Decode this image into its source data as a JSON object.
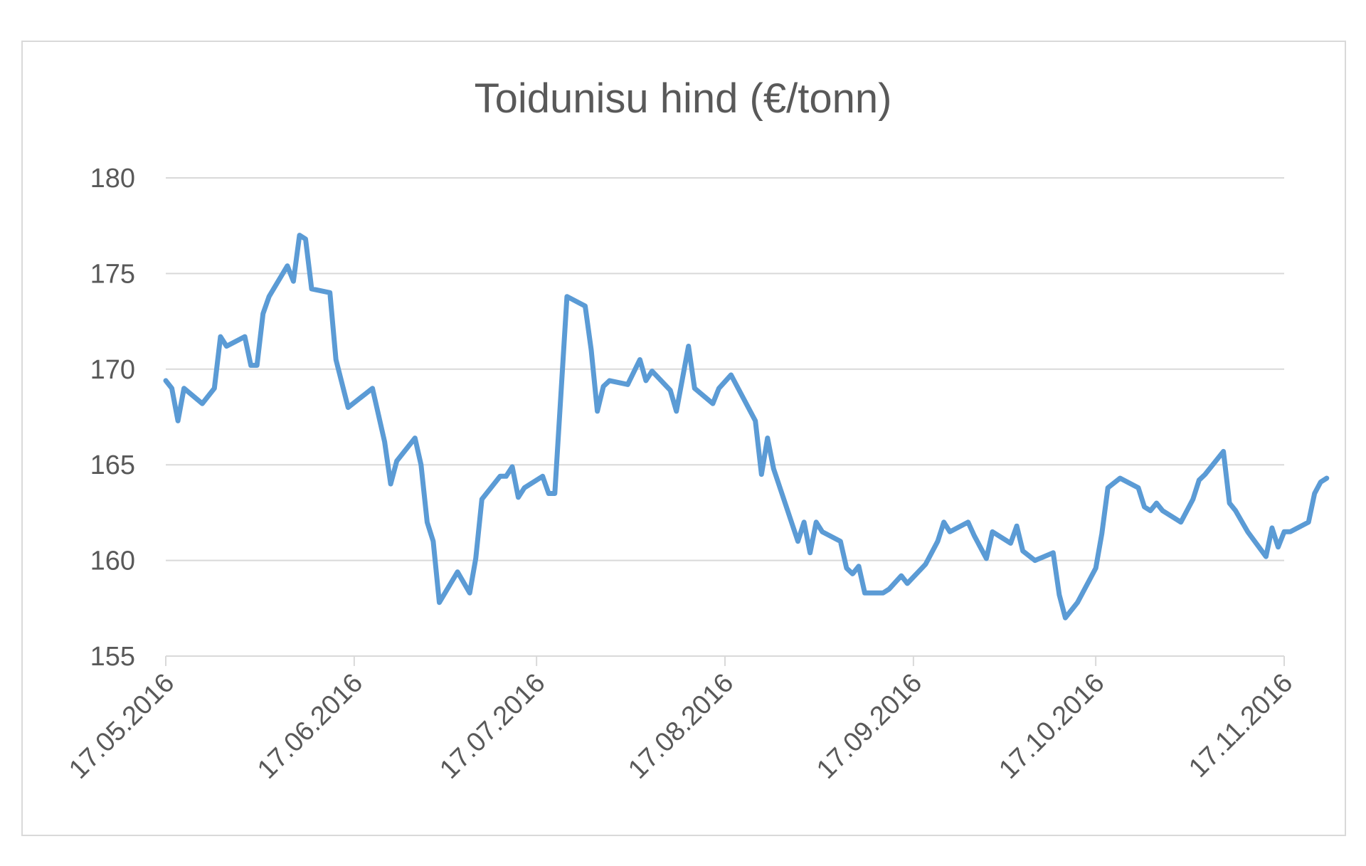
{
  "chart_data": {
    "type": "line",
    "title": "Toidunisu hind (€/tonn)",
    "xlabel": "",
    "ylabel": "",
    "ylim": [
      155,
      180
    ],
    "yticks": [
      "155",
      "160",
      "165",
      "170",
      "175",
      "180"
    ],
    "xticks": [
      "17.05.2016",
      "17.06.2016",
      "17.07.2016",
      "17.08.2016",
      "17.09.2016",
      "17.10.2016",
      "17.11.2016"
    ],
    "grid": "horizontal",
    "legend": "none",
    "series": [
      {
        "color": "#5b9bd5",
        "points": [
          [
            "17.05.2016",
            169.4
          ],
          [
            "18.05.2016",
            169.0
          ],
          [
            "19.05.2016",
            167.3
          ],
          [
            "20.05.2016",
            169.0
          ],
          [
            "23.05.2016",
            168.2
          ],
          [
            "25.05.2016",
            169.0
          ],
          [
            "26.05.2016",
            171.7
          ],
          [
            "27.05.2016",
            171.2
          ],
          [
            "30.05.2016",
            171.7
          ],
          [
            "31.05.2016",
            170.2
          ],
          [
            "01.06.2016",
            170.2
          ],
          [
            "02.06.2016",
            172.9
          ],
          [
            "03.06.2016",
            173.8
          ],
          [
            "06.06.2016",
            175.4
          ],
          [
            "07.06.2016",
            174.6
          ],
          [
            "08.06.2016",
            177.0
          ],
          [
            "09.06.2016",
            176.8
          ],
          [
            "10.06.2016",
            174.2
          ],
          [
            "13.06.2016",
            174.0
          ],
          [
            "14.06.2016",
            170.5
          ],
          [
            "16.06.2016",
            168.0
          ],
          [
            "20.06.2016",
            169.0
          ],
          [
            "22.06.2016",
            166.2
          ],
          [
            "23.06.2016",
            164.0
          ],
          [
            "24.06.2016",
            165.2
          ],
          [
            "27.06.2016",
            166.4
          ],
          [
            "28.06.2016",
            165.0
          ],
          [
            "29.06.2016",
            162.0
          ],
          [
            "30.06.2016",
            161.0
          ],
          [
            "01.07.2016",
            157.8
          ],
          [
            "04.07.2016",
            159.4
          ],
          [
            "06.07.2016",
            158.3
          ],
          [
            "07.07.2016",
            160.1
          ],
          [
            "08.07.2016",
            163.2
          ],
          [
            "11.07.2016",
            164.4
          ],
          [
            "12.07.2016",
            164.4
          ],
          [
            "13.07.2016",
            164.9
          ],
          [
            "14.07.2016",
            163.3
          ],
          [
            "15.07.2016",
            163.8
          ],
          [
            "18.07.2016",
            164.4
          ],
          [
            "19.07.2016",
            163.5
          ],
          [
            "20.07.2016",
            163.5
          ],
          [
            "22.07.2016",
            173.8
          ],
          [
            "25.07.2016",
            173.3
          ],
          [
            "26.07.2016",
            171.0
          ],
          [
            "27.07.2016",
            167.8
          ],
          [
            "28.07.2016",
            169.1
          ],
          [
            "29.07.2016",
            169.4
          ],
          [
            "01.08.2016",
            169.2
          ],
          [
            "03.08.2016",
            170.5
          ],
          [
            "04.08.2016",
            169.4
          ],
          [
            "05.08.2016",
            169.9
          ],
          [
            "08.08.2016",
            168.9
          ],
          [
            "09.08.2016",
            167.8
          ],
          [
            "10.08.2016",
            169.5
          ],
          [
            "11.08.2016",
            171.2
          ],
          [
            "12.08.2016",
            169.0
          ],
          [
            "15.08.2016",
            168.2
          ],
          [
            "16.08.2016",
            169.0
          ],
          [
            "18.08.2016",
            169.7
          ],
          [
            "22.08.2016",
            167.3
          ],
          [
            "23.08.2016",
            164.5
          ],
          [
            "24.08.2016",
            166.4
          ],
          [
            "25.08.2016",
            164.8
          ],
          [
            "29.08.2016",
            161.0
          ],
          [
            "30.08.2016",
            162.0
          ],
          [
            "31.08.2016",
            160.4
          ],
          [
            "01.09.2016",
            162.0
          ],
          [
            "02.09.2016",
            161.5
          ],
          [
            "05.09.2016",
            161.0
          ],
          [
            "06.09.2016",
            159.6
          ],
          [
            "07.09.2016",
            159.3
          ],
          [
            "08.09.2016",
            159.7
          ],
          [
            "09.09.2016",
            158.3
          ],
          [
            "12.09.2016",
            158.3
          ],
          [
            "13.09.2016",
            158.5
          ],
          [
            "15.09.2016",
            159.2
          ],
          [
            "16.09.2016",
            158.8
          ],
          [
            "19.09.2016",
            159.8
          ],
          [
            "21.09.2016",
            161.0
          ],
          [
            "22.09.2016",
            162.0
          ],
          [
            "23.09.2016",
            161.5
          ],
          [
            "26.09.2016",
            162.0
          ],
          [
            "27.09.2016",
            161.3
          ],
          [
            "29.09.2016",
            160.1
          ],
          [
            "30.09.2016",
            161.5
          ],
          [
            "03.10.2016",
            160.9
          ],
          [
            "04.10.2016",
            161.8
          ],
          [
            "05.10.2016",
            160.5
          ],
          [
            "07.10.2016",
            160.0
          ],
          [
            "10.10.2016",
            160.4
          ],
          [
            "11.10.2016",
            158.2
          ],
          [
            "12.10.2016",
            157.0
          ],
          [
            "14.10.2016",
            157.8
          ],
          [
            "17.10.2016",
            159.6
          ],
          [
            "18.10.2016",
            161.4
          ],
          [
            "19.10.2016",
            163.8
          ],
          [
            "21.10.2016",
            164.3
          ],
          [
            "24.10.2016",
            163.8
          ],
          [
            "25.10.2016",
            162.8
          ],
          [
            "26.10.2016",
            162.6
          ],
          [
            "27.10.2016",
            163.0
          ],
          [
            "28.10.2016",
            162.6
          ],
          [
            "31.10.2016",
            162.0
          ],
          [
            "02.11.2016",
            163.2
          ],
          [
            "03.11.2016",
            164.2
          ],
          [
            "04.11.2016",
            164.5
          ],
          [
            "07.11.2016",
            165.7
          ],
          [
            "08.11.2016",
            163.0
          ],
          [
            "09.11.2016",
            162.6
          ],
          [
            "11.11.2016",
            161.5
          ],
          [
            "14.11.2016",
            160.2
          ],
          [
            "15.11.2016",
            161.7
          ],
          [
            "16.11.2016",
            160.7
          ],
          [
            "17.11.2016",
            161.5
          ],
          [
            "18.11.2016",
            161.5
          ],
          [
            "21.11.2016",
            162.0
          ],
          [
            "22.11.2016",
            163.5
          ],
          [
            "23.11.2016",
            164.1
          ],
          [
            "24.11.2016",
            164.3
          ]
        ]
      }
    ]
  }
}
